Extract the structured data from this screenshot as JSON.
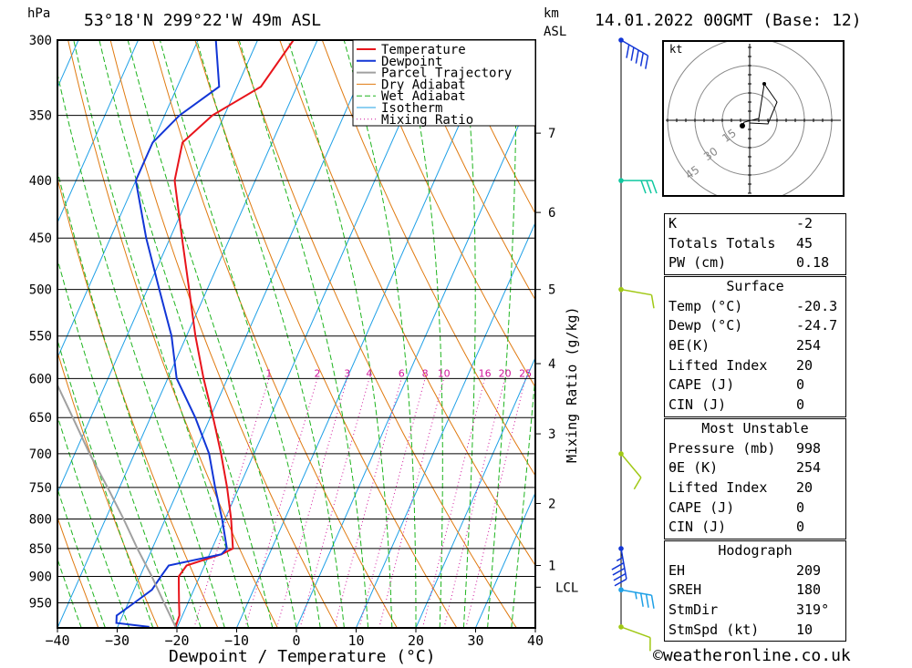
{
  "header": {
    "location": "53°18'N 299°22'W 49m ASL",
    "datetime": "14.01.2022 00GMT (Base: 12)",
    "pressure_unit": "hPa",
    "height_unit": "km",
    "height_ref": "ASL"
  },
  "chart_data": {
    "type": "line",
    "subtype": "skew-t log-p",
    "xlabel": "Dewpoint / Temperature (°C)",
    "ylabel": "hPa",
    "secondary_ylabel": "Mixing Ratio (g/kg)",
    "xlim": [
      -40,
      40
    ],
    "ylim": [
      1000,
      300
    ],
    "x_ticks": [
      -40,
      -30,
      -20,
      -10,
      0,
      10,
      20,
      30,
      40
    ],
    "pressure_levels": [
      300,
      350,
      400,
      450,
      500,
      550,
      600,
      650,
      700,
      750,
      800,
      850,
      900,
      950
    ],
    "height_ticks_km": [
      1,
      2,
      3,
      4,
      5,
      6,
      7
    ],
    "height_ticks_pressure": [
      880,
      775,
      672,
      582,
      500,
      427,
      363
    ],
    "lcl_label": "LCL",
    "lcl_pressure": 920,
    "mixing_ratio_labels": [
      "1",
      "2",
      "3",
      "4",
      "6",
      "8",
      "10",
      "16",
      "20",
      "25"
    ],
    "mixing_ratio_values": [
      1,
      2,
      3,
      4,
      6,
      8,
      10,
      16,
      20,
      25
    ],
    "legend": [
      "Temperature",
      "Dewpoint",
      "Parcel Trajectory",
      "Dry Adiabat",
      "Wet Adiabat",
      "Isotherm",
      "Mixing Ratio"
    ],
    "legend_position": "top-right",
    "colors": {
      "temperature": "#e8141b",
      "dewpoint": "#1236d6",
      "parcel": "#a0a0a0",
      "dry_adiabat": "#e07a10",
      "wet_adiabat": "#1eb41e",
      "isotherm": "#1ea0e6",
      "mixing_ratio": "#d0149a"
    },
    "series": [
      {
        "name": "Temperature",
        "pressure": [
          998,
          975,
          950,
          925,
          900,
          880,
          860,
          850,
          800,
          750,
          700,
          650,
          600,
          550,
          500,
          450,
          400,
          370,
          350,
          330,
          300
        ],
        "values": [
          -20.3,
          -20.5,
          -21.5,
          -22.5,
          -23.5,
          -23.0,
          -18.0,
          -16.5,
          -19.0,
          -22.0,
          -25.5,
          -29.5,
          -34.0,
          -38.5,
          -43.0,
          -48.0,
          -53.5,
          -55.0,
          -52.0,
          -46.0,
          -44.0
        ]
      },
      {
        "name": "Dewpoint",
        "pressure": [
          998,
          990,
          975,
          950,
          925,
          900,
          880,
          860,
          850,
          800,
          750,
          700,
          650,
          600,
          550,
          500,
          450,
          400,
          370,
          350,
          330,
          300
        ],
        "values": [
          -24.7,
          -30.5,
          -31.0,
          -29.0,
          -27.0,
          -26.5,
          -26.0,
          -18.0,
          -17.5,
          -20.5,
          -24.0,
          -27.5,
          -32.5,
          -38.5,
          -42.5,
          -48.0,
          -54.0,
          -60.0,
          -60.0,
          -57.5,
          -53.0,
          -57.0
        ]
      },
      {
        "name": "Parcel Trajectory",
        "pressure": [
          998,
          950,
          900,
          850,
          800,
          750,
          700,
          650,
          600,
          550
        ],
        "values": [
          -20.3,
          -24.0,
          -28.0,
          -32.5,
          -37.0,
          -42.0,
          -47.5,
          -53.0,
          -59.0,
          -65.5
        ]
      }
    ],
    "wind_barbs": [
      {
        "pressure": 300,
        "color": "#1236d6",
        "dir_deg": 300,
        "speed_kt": 50
      },
      {
        "pressure": 400,
        "color": "#10c8a0",
        "dir_deg": 270,
        "speed_kt": 30
      },
      {
        "pressure": 500,
        "color": "#a0c814",
        "dir_deg": 280,
        "speed_kt": 10
      },
      {
        "pressure": 700,
        "color": "#a0c814",
        "dir_deg": 320,
        "speed_kt": 10
      },
      {
        "pressure": 850,
        "color": "#1236d6",
        "dir_deg": 350,
        "speed_kt": 45
      },
      {
        "pressure": 925,
        "color": "#1ea0e6",
        "dir_deg": 280,
        "speed_kt": 35
      },
      {
        "pressure": 998,
        "color": "#a0c814",
        "dir_deg": 290,
        "speed_kt": 10
      }
    ]
  },
  "hodograph": {
    "unit_label": "kt",
    "ring_labels": [
      "15",
      "30",
      "45"
    ],
    "points": [
      [
        0.2,
        -1.5
      ],
      [
        10,
        -2
      ],
      [
        15,
        10
      ],
      [
        8,
        20
      ],
      [
        5,
        1
      ],
      [
        -3,
        -1
      ],
      [
        -4,
        -3
      ]
    ],
    "storm_motion": [
      -4,
      -3
    ]
  },
  "indices": {
    "basic": [
      {
        "label": "K",
        "value": "-2"
      },
      {
        "label": "Totals Totals",
        "value": "45"
      },
      {
        "label": "PW (cm)",
        "value": "0.18"
      }
    ],
    "surface": {
      "title": "Surface",
      "rows": [
        {
          "label": "Temp (°C)",
          "value": "-20.3"
        },
        {
          "label": "Dewp (°C)",
          "value": "-24.7"
        },
        {
          "label": "θE(K)",
          "value": "254"
        },
        {
          "label": "Lifted Index",
          "value": "20"
        },
        {
          "label": "CAPE (J)",
          "value": "0"
        },
        {
          "label": "CIN (J)",
          "value": "0"
        }
      ]
    },
    "most_unstable": {
      "title": "Most Unstable",
      "rows": [
        {
          "label": "Pressure (mb)",
          "value": "998"
        },
        {
          "label": "θE (K)",
          "value": "254"
        },
        {
          "label": "Lifted Index",
          "value": "20"
        },
        {
          "label": "CAPE (J)",
          "value": "0"
        },
        {
          "label": "CIN (J)",
          "value": "0"
        }
      ]
    },
    "hodograph_table": {
      "title": "Hodograph",
      "rows": [
        {
          "label": "EH",
          "value": "209"
        },
        {
          "label": "SREH",
          "value": "180"
        },
        {
          "label": "StmDir",
          "value": "319°"
        },
        {
          "label": "StmSpd (kt)",
          "value": "10"
        }
      ]
    }
  },
  "footer": {
    "credit": "©weatheronline.co.uk"
  }
}
